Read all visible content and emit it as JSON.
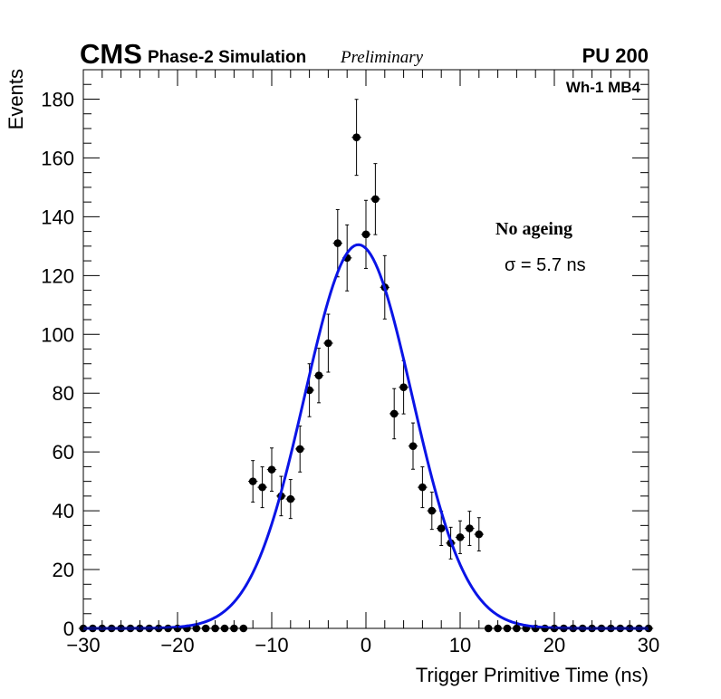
{
  "header": {
    "experiment": "CMS",
    "simulation": "Phase-2 Simulation",
    "status": "Preliminary",
    "pileup": "PU 200",
    "region": "Wh-1 MB4"
  },
  "annotations": {
    "scenario": "No ageing",
    "sigma_text": "σ = 5.7 ns"
  },
  "chart_data": {
    "type": "scatter",
    "title": "",
    "xlabel": "Trigger Primitive Time (ns)",
    "ylabel": "Events",
    "xlim": [
      -30,
      30
    ],
    "ylim": [
      0,
      190
    ],
    "x_ticks": [
      -30,
      -20,
      -10,
      0,
      10,
      20,
      30
    ],
    "x_tick_labels": [
      "−30",
      "−20",
      "−10",
      "0",
      "10",
      "20",
      "30"
    ],
    "y_ticks": [
      0,
      20,
      40,
      60,
      80,
      100,
      120,
      140,
      160,
      180
    ],
    "y_tick_labels": [
      "0",
      "20",
      "40",
      "60",
      "80",
      "100",
      "120",
      "140",
      "160",
      "180"
    ],
    "grid": false,
    "series": [
      {
        "name": "Data",
        "kind": "points-with-errors",
        "bin_width": 1,
        "x": [
          -30,
          -29,
          -28,
          -27,
          -26,
          -25,
          -24,
          -23,
          -22,
          -21,
          -20,
          -19,
          -18,
          -17,
          -16,
          -15,
          -14,
          -13,
          -12,
          -11,
          -10,
          -9,
          -8,
          -7,
          -6,
          -5,
          -4,
          -3,
          -2,
          -1,
          0,
          1,
          2,
          3,
          4,
          5,
          6,
          7,
          8,
          9,
          10,
          11,
          12,
          13,
          14,
          15,
          16,
          17,
          18,
          19,
          20,
          21,
          22,
          23,
          24,
          25,
          26,
          27,
          28,
          29,
          30
        ],
        "y": [
          0,
          0,
          0,
          0,
          0,
          0,
          0,
          0,
          0,
          0,
          0,
          0,
          0,
          0,
          0,
          0,
          0,
          0,
          50,
          48,
          54,
          45,
          44,
          61,
          81,
          86,
          97,
          131,
          126,
          167,
          134,
          146,
          116,
          73,
          82,
          62,
          48,
          40,
          34,
          29,
          31,
          34,
          32,
          0,
          0,
          0,
          0,
          0,
          0,
          0,
          0,
          0,
          0,
          0,
          0,
          0,
          0,
          0,
          0,
          0,
          0
        ]
      },
      {
        "name": "Gaussian fit",
        "kind": "function",
        "color": "#0a14e6",
        "amplitude": 130.5,
        "mean": -0.8,
        "sigma": 5.7
      }
    ]
  }
}
